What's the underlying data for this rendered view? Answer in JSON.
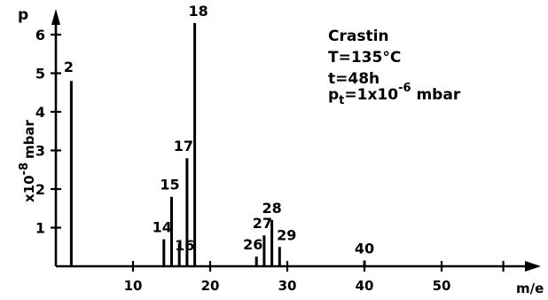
{
  "chart_data": {
    "type": "bar",
    "subtype": "mass-spectrum-lines",
    "x_axis": {
      "label": "m/e",
      "min": 0,
      "max": 60,
      "ticks": [
        10,
        20,
        30,
        40,
        50
      ],
      "tick_labels": [
        "10",
        "20",
        "30",
        "40",
        "50"
      ]
    },
    "y_axis": {
      "label": "p",
      "unit_label_prefix": "x10",
      "unit_label_exp": "-8",
      "unit_label_suffix": "mbar",
      "min": 0,
      "max": 6.5,
      "ticks": [
        1,
        2,
        3,
        4,
        5,
        6
      ],
      "tick_labels": [
        "1",
        "2",
        "3",
        "4",
        "5",
        "6"
      ]
    },
    "peaks": [
      {
        "me": 2,
        "p": 4.8,
        "label": "2"
      },
      {
        "me": 14,
        "p": 0.7,
        "label": "14"
      },
      {
        "me": 15,
        "p": 1.8,
        "label": "15"
      },
      {
        "me": 16,
        "p": 0.6,
        "label": "16"
      },
      {
        "me": 17,
        "p": 2.8,
        "label": "17"
      },
      {
        "me": 18,
        "p": 6.3,
        "label": "18"
      },
      {
        "me": 26,
        "p": 0.25,
        "label": "26"
      },
      {
        "me": 27,
        "p": 0.8,
        "label": "27"
      },
      {
        "me": 28,
        "p": 1.2,
        "label": "28"
      },
      {
        "me": 29,
        "p": 0.5,
        "label": "29"
      },
      {
        "me": 40,
        "p": 0.15,
        "label": "40"
      }
    ],
    "annotation": {
      "sample": "Crastin",
      "temperature": "T=135°C",
      "time": "t=48h",
      "pressure_symbol": "p",
      "pressure_sub": "t",
      "pressure_value": "=1x10",
      "pressure_exp": "-6",
      "pressure_unit": " mbar"
    },
    "grid": false,
    "legend": "none"
  }
}
